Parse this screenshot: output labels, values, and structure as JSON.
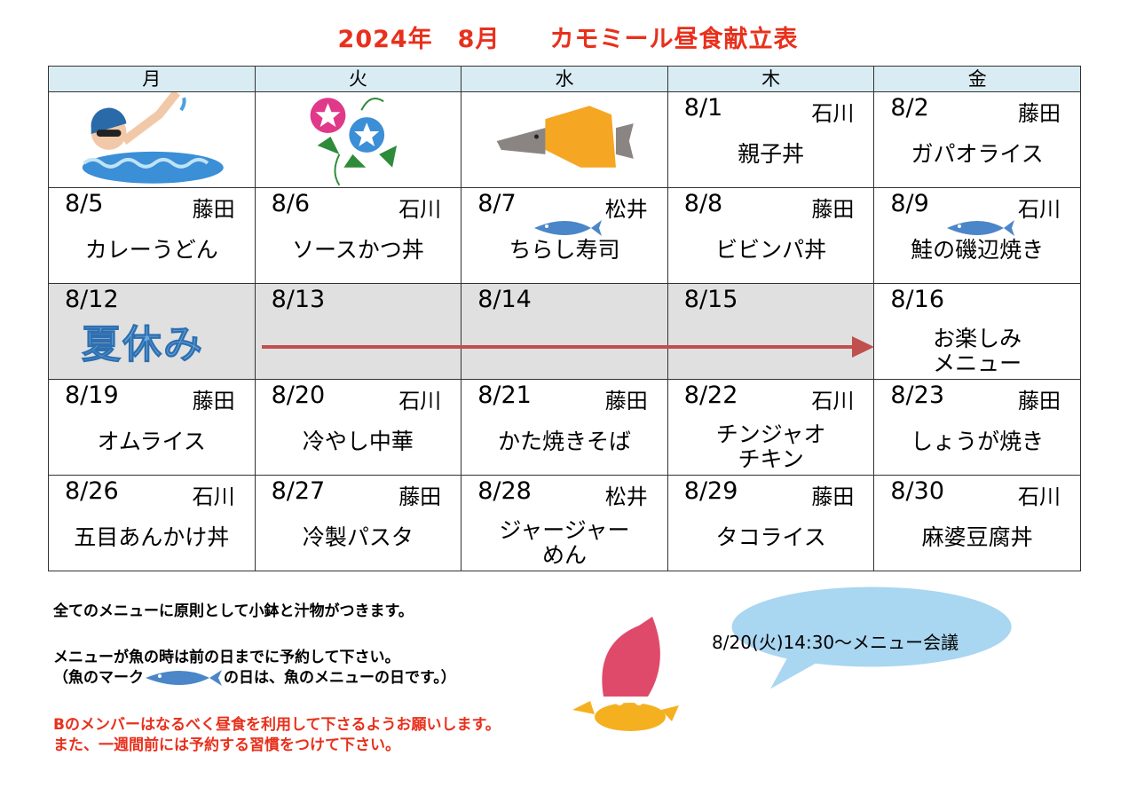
{
  "title": "2024年　8月　　カモミール昼食献立表",
  "weekdays": [
    "月",
    "火",
    "水",
    "木",
    "金"
  ],
  "week1": [
    {
      "date": "8/1",
      "staff": "石川",
      "menu": "親子丼"
    },
    {
      "date": "8/2",
      "staff": "藤田",
      "menu": "ガパオライス"
    }
  ],
  "week2": [
    {
      "date": "8/5",
      "staff": "藤田",
      "menu": "カレーうどん"
    },
    {
      "date": "8/6",
      "staff": "石川",
      "menu": "ソースかつ丼"
    },
    {
      "date": "8/7",
      "staff": "松井",
      "menu": "ちらし寿司",
      "fish": true
    },
    {
      "date": "8/8",
      "staff": "藤田",
      "menu": "ビビンパ丼"
    },
    {
      "date": "8/9",
      "staff": "石川",
      "menu": "鮭の磯辺焼き",
      "fish": true
    }
  ],
  "week3": [
    {
      "date": "8/12"
    },
    {
      "date": "8/13"
    },
    {
      "date": "8/14"
    },
    {
      "date": "8/15"
    },
    {
      "date": "8/16",
      "menu_line1": "お楽しみ",
      "menu_line2": "メニュー"
    }
  ],
  "summer_break_label": "夏休み",
  "week4": [
    {
      "date": "8/19",
      "staff": "藤田",
      "menu": "オムライス"
    },
    {
      "date": "8/20",
      "staff": "石川",
      "menu": "冷やし中華"
    },
    {
      "date": "8/21",
      "staff": "藤田",
      "menu": "かた焼きそば"
    },
    {
      "date": "8/22",
      "staff": "石川",
      "menu_line1": "チンジャオ",
      "menu_line2": "チキン"
    },
    {
      "date": "8/23",
      "staff": "藤田",
      "menu": "しょうが焼き"
    }
  ],
  "week5": [
    {
      "date": "8/26",
      "staff": "石川",
      "menu": "五目あんかけ丼"
    },
    {
      "date": "8/27",
      "staff": "藤田",
      "menu": "冷製パスタ"
    },
    {
      "date": "8/28",
      "staff": "松井",
      "menu_line1": "ジャージャー",
      "menu_line2": "めん"
    },
    {
      "date": "8/29",
      "staff": "藤田",
      "menu": "タコライス"
    },
    {
      "date": "8/30",
      "staff": "石川",
      "menu": "麻婆豆腐丼"
    }
  ],
  "notes": {
    "line1": "全てのメニューに原則として小鉢と汁物がつきます。",
    "line2": "メニューが魚の時は前の日までに予約して下さい。",
    "line3a": "（魚のマーク",
    "line3b": "の日は、魚のメニューの日です。）",
    "line4": "Bのメンバーはなるべく昼食を利用して下さるようお願いします。",
    "line5": "また、一週間前には予約する習慣をつけて下さい。"
  },
  "bubble": "8/20(火)14:30～メニュー会議",
  "colors": {
    "title": "#e8301c",
    "header_bg": "#d9ecf3",
    "holiday_bg": "#e0e0e0",
    "arrow": "#c0504d",
    "fish": "#4a86c8"
  }
}
